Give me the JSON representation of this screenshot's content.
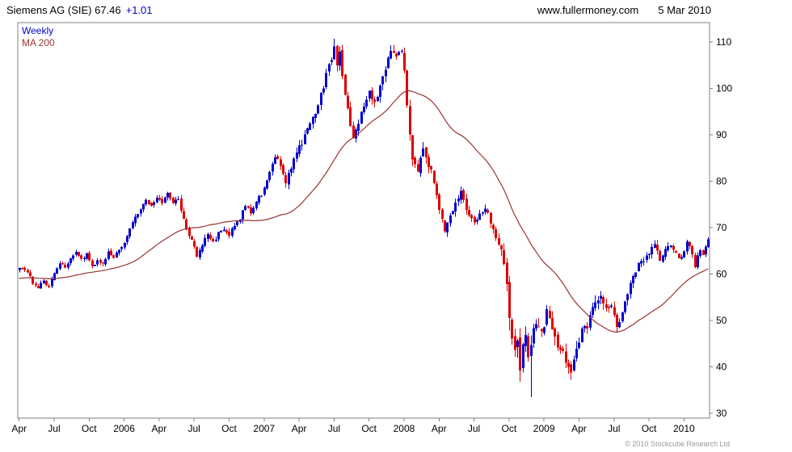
{
  "header": {
    "title": "Siemens AG (SIE) 67.46",
    "change": "+1.01",
    "website": "www.fullermoney.com",
    "date": "5 Mar 2010"
  },
  "legend": {
    "weekly": "Weekly",
    "ma": "MA 200"
  },
  "footer": {
    "copyright": "© 2010 Stockcube Research Ltd"
  },
  "colors": {
    "up": "#0000cc",
    "down": "#dd0000",
    "ma_line": "#993333",
    "frame": "#808080",
    "text": "#000000",
    "muted": "#999999"
  },
  "chart_data": {
    "type": "candlestick",
    "title": "Siemens AG (SIE)",
    "frequency": "Weekly",
    "last_price": 67.46,
    "change": 1.01,
    "weeks_total": 257,
    "start_label": "Apr 2005",
    "end_label": "5 Mar 2010",
    "grid": false,
    "legend_position": "top-left",
    "y_axis": {
      "min": 30,
      "max": 110,
      "ticks": [
        30,
        40,
        50,
        60,
        70,
        80,
        90,
        100,
        110
      ],
      "side": "right"
    },
    "x_axis": {
      "labels": [
        {
          "text": "Apr",
          "week": 0
        },
        {
          "text": "Jul",
          "week": 13
        },
        {
          "text": "Oct",
          "week": 26
        },
        {
          "text": "2006",
          "week": 39
        },
        {
          "text": "Apr",
          "week": 52
        },
        {
          "text": "Jul",
          "week": 65
        },
        {
          "text": "Oct",
          "week": 78
        },
        {
          "text": "2007",
          "week": 91
        },
        {
          "text": "Apr",
          "week": 104
        },
        {
          "text": "Jul",
          "week": 117
        },
        {
          "text": "Oct",
          "week": 130
        },
        {
          "text": "2008",
          "week": 143
        },
        {
          "text": "Apr",
          "week": 156
        },
        {
          "text": "Jul",
          "week": 169
        },
        {
          "text": "Oct",
          "week": 182
        },
        {
          "text": "2009",
          "week": 195
        },
        {
          "text": "Apr",
          "week": 208
        },
        {
          "text": "Jul",
          "week": 221
        },
        {
          "text": "Oct",
          "week": 234
        },
        {
          "text": "2010",
          "week": 247
        }
      ]
    },
    "close_keypoints": [
      [
        0,
        61.5
      ],
      [
        3,
        60.5
      ],
      [
        5,
        58.2
      ],
      [
        7,
        57.2
      ],
      [
        9,
        58.6
      ],
      [
        11,
        57.2
      ],
      [
        13,
        60.5
      ],
      [
        15,
        62.5
      ],
      [
        17,
        61.6
      ],
      [
        19,
        63.2
      ],
      [
        21,
        64.6
      ],
      [
        23,
        63.2
      ],
      [
        25,
        64.2
      ],
      [
        27,
        61.5
      ],
      [
        29,
        63.0
      ],
      [
        31,
        62.4
      ],
      [
        33,
        64.6
      ],
      [
        35,
        63.8
      ],
      [
        37,
        65.2
      ],
      [
        39,
        67.0
      ],
      [
        41,
        69.6
      ],
      [
        43,
        72.2
      ],
      [
        45,
        74.2
      ],
      [
        47,
        76.2
      ],
      [
        49,
        74.6
      ],
      [
        51,
        76.6
      ],
      [
        53,
        75.4
      ],
      [
        55,
        77.2
      ],
      [
        57,
        75.2
      ],
      [
        59,
        76.2
      ],
      [
        61,
        71.6
      ],
      [
        63,
        68.2
      ],
      [
        65,
        66.2
      ],
      [
        66,
        63.8
      ],
      [
        68,
        66.2
      ],
      [
        70,
        68.6
      ],
      [
        72,
        66.8
      ],
      [
        74,
        68.6
      ],
      [
        76,
        69.6
      ],
      [
        78,
        68.4
      ],
      [
        80,
        70.6
      ],
      [
        82,
        72.2
      ],
      [
        84,
        74.4
      ],
      [
        86,
        73.4
      ],
      [
        88,
        75.6
      ],
      [
        91,
        78.2
      ],
      [
        93,
        82.2
      ],
      [
        95,
        85.6
      ],
      [
        97,
        83.2
      ],
      [
        99,
        79.6
      ],
      [
        101,
        83.2
      ],
      [
        104,
        87.2
      ],
      [
        106,
        89.6
      ],
      [
        108,
        92.2
      ],
      [
        110,
        95.2
      ],
      [
        112,
        98.6
      ],
      [
        114,
        102.6
      ],
      [
        116,
        106.6
      ],
      [
        117,
        109.6
      ],
      [
        118,
        105.6
      ],
      [
        119,
        108.2
      ],
      [
        120,
        102.6
      ],
      [
        122,
        95.6
      ],
      [
        124,
        89.2
      ],
      [
        126,
        92.6
      ],
      [
        128,
        96.2
      ],
      [
        130,
        99.2
      ],
      [
        132,
        96.6
      ],
      [
        134,
        100.6
      ],
      [
        136,
        104.6
      ],
      [
        138,
        107.6
      ],
      [
        140,
        106.2
      ],
      [
        142,
        108.2
      ],
      [
        143,
        104.2
      ],
      [
        144,
        97.2
      ],
      [
        145,
        90.2
      ],
      [
        146,
        85.2
      ],
      [
        148,
        82.2
      ],
      [
        150,
        86.6
      ],
      [
        152,
        83.6
      ],
      [
        154,
        80.2
      ],
      [
        156,
        74.2
      ],
      [
        158,
        69.6
      ],
      [
        160,
        72.2
      ],
      [
        162,
        75.2
      ],
      [
        164,
        77.6
      ],
      [
        166,
        73.6
      ],
      [
        169,
        70.6
      ],
      [
        171,
        72.6
      ],
      [
        173,
        74.6
      ],
      [
        175,
        71.2
      ],
      [
        177,
        68.2
      ],
      [
        179,
        65.2
      ],
      [
        180,
        62.2
      ],
      [
        181,
        57.2
      ],
      [
        182,
        50.2
      ],
      [
        183,
        45.2
      ],
      [
        184,
        42.6
      ],
      [
        185,
        45.6
      ],
      [
        186,
        40.2
      ],
      [
        187,
        43.6
      ],
      [
        188,
        46.2
      ],
      [
        189,
        42.6
      ],
      [
        190,
        44.6
      ],
      [
        191,
        47.2
      ],
      [
        192,
        49.6
      ],
      [
        194,
        46.6
      ],
      [
        195,
        49.2
      ],
      [
        196,
        51.6
      ],
      [
        198,
        48.2
      ],
      [
        200,
        44.6
      ],
      [
        202,
        42.6
      ],
      [
        204,
        39.6
      ],
      [
        205,
        38.8
      ],
      [
        206,
        42.2
      ],
      [
        207,
        44.2
      ],
      [
        208,
        44.6
      ],
      [
        209,
        47.6
      ],
      [
        210,
        49.6
      ],
      [
        211,
        48.2
      ],
      [
        212,
        51.2
      ],
      [
        214,
        54.2
      ],
      [
        216,
        55.6
      ],
      [
        218,
        52.2
      ],
      [
        220,
        53.2
      ],
      [
        222,
        48.2
      ],
      [
        224,
        52.2
      ],
      [
        226,
        56.2
      ],
      [
        228,
        59.2
      ],
      [
        230,
        62.2
      ],
      [
        232,
        63.2
      ],
      [
        234,
        64.6
      ],
      [
        236,
        66.2
      ],
      [
        238,
        63.2
      ],
      [
        240,
        65.2
      ],
      [
        242,
        66.6
      ],
      [
        244,
        64.2
      ],
      [
        246,
        63.2
      ],
      [
        248,
        67.2
      ],
      [
        250,
        64.6
      ],
      [
        251,
        61.6
      ],
      [
        252,
        63.6
      ],
      [
        253,
        65.2
      ],
      [
        254,
        64.2
      ],
      [
        255,
        66.2
      ],
      [
        256,
        67.46
      ]
    ],
    "volatility_keypoints": [
      [
        0,
        0.7
      ],
      [
        50,
        0.8
      ],
      [
        90,
        1.0
      ],
      [
        115,
        1.6
      ],
      [
        130,
        1.3
      ],
      [
        143,
        1.9
      ],
      [
        155,
        1.4
      ],
      [
        178,
        1.2
      ],
      [
        182,
        3.0
      ],
      [
        190,
        2.6
      ],
      [
        200,
        2.2
      ],
      [
        210,
        1.9
      ],
      [
        220,
        1.4
      ],
      [
        235,
        1.1
      ],
      [
        256,
        0.9
      ]
    ],
    "forced_wicks": [
      {
        "week": 117,
        "high": 110.7
      },
      {
        "week": 190,
        "low": 33.5
      },
      {
        "week": 205,
        "low": 37.2
      }
    ],
    "ma": {
      "label": "MA 200",
      "window_weeks": 40,
      "prehistory_close": 59.0
    }
  }
}
